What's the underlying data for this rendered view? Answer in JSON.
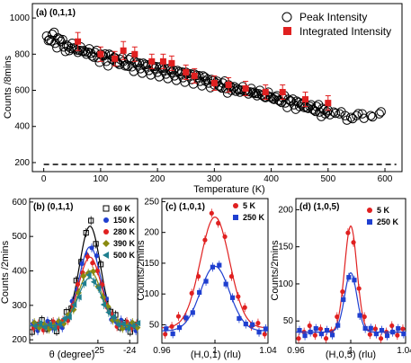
{
  "colors": {
    "red": "#e02020",
    "blue": "#1f3fd0",
    "black": "#000000",
    "olive": "#8a8a10",
    "teal": "#1f7f8f",
    "brown": "#7a2a00"
  },
  "chart_data": [
    {
      "id": "a",
      "type": "scatter",
      "panel_label": "(a) (0,1,1)",
      "xlabel": "Temperature (K)",
      "ylabel": "Counts /8mins",
      "xlim": [
        -20,
        630
      ],
      "ylim": [
        150,
        1080
      ],
      "xticks": [
        0,
        100,
        200,
        300,
        400,
        500,
        600
      ],
      "yticks": [
        200,
        400,
        600,
        800,
        1000
      ],
      "legend_position": "top-right",
      "dashed_reference_y": 190,
      "series": [
        {
          "name": "Peak Intensity",
          "marker": "open-circle",
          "x": [
            5,
            10,
            15,
            20,
            25,
            30,
            35,
            40,
            45,
            50,
            55,
            60,
            65,
            70,
            75,
            80,
            85,
            90,
            95,
            100,
            105,
            110,
            115,
            120,
            125,
            130,
            135,
            140,
            145,
            150,
            155,
            160,
            165,
            170,
            175,
            180,
            185,
            190,
            195,
            200,
            205,
            210,
            215,
            220,
            225,
            230,
            235,
            240,
            245,
            250,
            255,
            260,
            265,
            270,
            275,
            280,
            285,
            290,
            295,
            300,
            305,
            310,
            315,
            320,
            325,
            330,
            335,
            340,
            345,
            350,
            355,
            360,
            365,
            370,
            375,
            380,
            385,
            390,
            395,
            400,
            405,
            410,
            415,
            420,
            425,
            430,
            435,
            440,
            445,
            450,
            455,
            460,
            465,
            470,
            475,
            480,
            485,
            490,
            495,
            500,
            510,
            520,
            530,
            540,
            550,
            560,
            575,
            590
          ],
          "y": [
            900,
            880,
            910,
            860,
            890,
            870,
            840,
            850,
            820,
            860,
            830,
            810,
            840,
            820,
            800,
            830,
            790,
            810,
            780,
            800,
            790,
            760,
            800,
            770,
            780,
            750,
            770,
            760,
            740,
            770,
            730,
            760,
            740,
            720,
            750,
            730,
            710,
            740,
            720,
            700,
            730,
            710,
            690,
            720,
            700,
            680,
            710,
            690,
            670,
            700,
            680,
            660,
            690,
            670,
            650,
            680,
            650,
            640,
            660,
            630,
            650,
            620,
            640,
            610,
            630,
            600,
            620,
            610,
            590,
            620,
            600,
            580,
            610,
            590,
            570,
            600,
            570,
            560,
            590,
            560,
            550,
            570,
            540,
            560,
            530,
            550,
            540,
            520,
            540,
            510,
            530,
            510,
            500,
            520,
            490,
            510,
            480,
            500,
            470,
            490,
            480,
            470,
            460,
            450,
            460,
            470,
            460,
            470
          ]
        },
        {
          "name": "Integrated Intensity",
          "marker": "filled-square",
          "color": "red",
          "x": [
            60,
            100,
            125,
            140,
            160,
            190,
            210,
            225,
            250,
            265,
            300,
            325,
            355,
            390,
            420,
            460,
            500
          ],
          "y": [
            870,
            800,
            775,
            820,
            800,
            760,
            760,
            750,
            700,
            680,
            640,
            630,
            610,
            590,
            590,
            550,
            530
          ],
          "yerr": [
            50,
            40,
            40,
            50,
            40,
            40,
            40,
            40,
            40,
            40,
            40,
            40,
            40,
            40,
            40,
            40,
            40
          ]
        }
      ]
    },
    {
      "id": "b",
      "type": "scatter",
      "panel_label": "(b) (0,1,1)",
      "xlabel": "θ (degree)",
      "ylabel": "Counts /2mins",
      "xlim": [
        -27.15,
        -23.75
      ],
      "ylim": [
        190,
        610
      ],
      "xticks": [
        -25,
        -24
      ],
      "yticks": [
        200,
        300,
        400,
        500,
        600
      ],
      "legend_position": "top-right",
      "center": -25.25,
      "series": [
        {
          "name": "60 K",
          "color": "black",
          "marker": "open-square",
          "peak": 530,
          "baseline": 240,
          "sigma": 0.33
        },
        {
          "name": "150 K",
          "color": "blue",
          "marker": "filled-circle",
          "peak": 470,
          "baseline": 240,
          "sigma": 0.34
        },
        {
          "name": "280 K",
          "color": "red",
          "marker": "filled-circle",
          "peak": 440,
          "baseline": 240,
          "sigma": 0.35
        },
        {
          "name": "390 K",
          "color": "olive",
          "marker": "filled-diamond",
          "peak": 400,
          "baseline": 240,
          "sigma": 0.36
        },
        {
          "name": "500 K",
          "color": "teal",
          "marker": "filled-triangle",
          "peak": 380,
          "baseline": 240,
          "sigma": 0.37
        }
      ]
    },
    {
      "id": "c",
      "type": "scatter",
      "panel_label": "(c) (1,0,1)",
      "xlabel": "(H,0,1) (rlu)",
      "ylabel": "Counts/2mins",
      "xlim": [
        0.96,
        1.04
      ],
      "ylim": [
        20,
        255
      ],
      "xticks": [
        0.96,
        1.0,
        1.04
      ],
      "yticks": [
        50,
        100,
        150,
        200,
        250
      ],
      "legend_position": "top-right",
      "center": 1.0,
      "series": [
        {
          "name": "5 K",
          "color": "red",
          "marker": "filled-circle",
          "peak": 225,
          "baseline": 45,
          "sigma": 0.011
        },
        {
          "name": "250 K",
          "color": "blue",
          "marker": "filled-square",
          "peak": 145,
          "baseline": 40,
          "sigma": 0.011
        }
      ]
    },
    {
      "id": "d",
      "type": "scatter",
      "panel_label": "(d) (1,0,5)",
      "xlabel": "(H,0,5) (rlu)",
      "ylabel": "Counts/2mins",
      "xlim": [
        0.96,
        1.04
      ],
      "ylim": [
        20,
        215
      ],
      "xticks": [
        0.96,
        1.0,
        1.04
      ],
      "yticks": [
        50,
        100,
        150,
        200
      ],
      "legend_position": "top-right",
      "center": 1.0,
      "series": [
        {
          "name": "5 K",
          "color": "red",
          "marker": "filled-circle",
          "peak": 178,
          "baseline": 35,
          "sigma": 0.0045
        },
        {
          "name": "250 K",
          "color": "blue",
          "marker": "filled-square",
          "peak": 115,
          "baseline": 35,
          "sigma": 0.0045
        }
      ]
    }
  ]
}
